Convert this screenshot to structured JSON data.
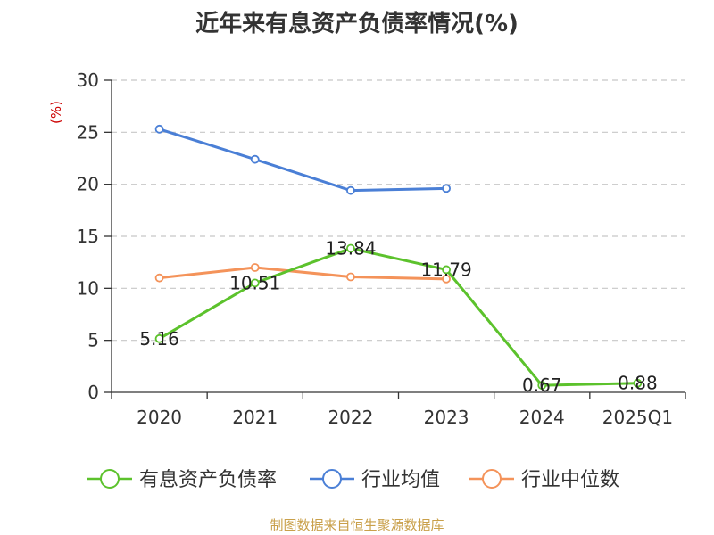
{
  "chart_data": {
    "type": "line",
    "title": "近年来有息资产负债率情况(%)",
    "ylabel": "(%)",
    "xlabel": "",
    "categories": [
      "2020",
      "2021",
      "2022",
      "2023",
      "2024",
      "2025Q1"
    ],
    "ylim": [
      0,
      30
    ],
    "yticks": [
      0,
      5,
      10,
      15,
      20,
      25,
      30
    ],
    "grid": true,
    "legend_position": "bottom",
    "series": [
      {
        "name": "有息资产负债率",
        "color": "#5cc22c",
        "values": [
          5.16,
          10.51,
          13.84,
          11.79,
          0.67,
          0.88
        ],
        "labels": [
          "5.16",
          "10.51",
          "13.84",
          "11.79",
          "0.67",
          "0.88"
        ]
      },
      {
        "name": "行业均值",
        "color": "#4a7fd6",
        "values": [
          25.3,
          22.4,
          19.4,
          19.6,
          null,
          null
        ]
      },
      {
        "name": "行业中位数",
        "color": "#f4935a",
        "values": [
          11.0,
          12.0,
          11.1,
          10.9,
          null,
          null
        ]
      }
    ]
  },
  "footer": {
    "source": "制图数据来自恒生聚源数据库"
  }
}
